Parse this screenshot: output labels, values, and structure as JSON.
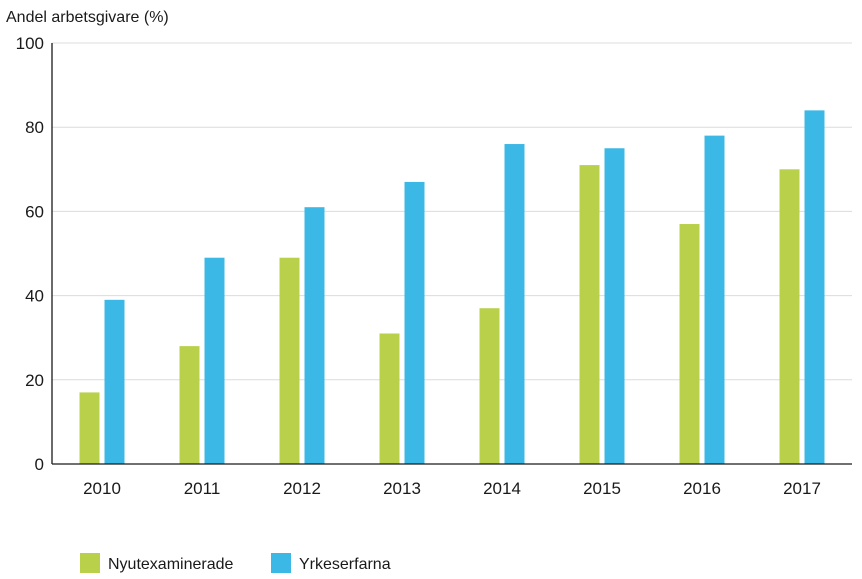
{
  "chart_data": {
    "type": "bar",
    "ylabel": "Andel arbetsgivare (%)",
    "categories": [
      "2010",
      "2011",
      "2012",
      "2013",
      "2014",
      "2015",
      "2016",
      "2017"
    ],
    "series": [
      {
        "name": "Nyutexaminerade",
        "color": "#b8d04a",
        "values": [
          17,
          28,
          49,
          31,
          37,
          71,
          57,
          70
        ]
      },
      {
        "name": "Yrkeserfarna",
        "color": "#3cb8e6",
        "values": [
          39,
          49,
          61,
          67,
          76,
          75,
          78,
          84
        ]
      }
    ],
    "ylim": [
      0,
      100
    ],
    "yticks": [
      "0",
      "20",
      "40",
      "60",
      "80",
      "100"
    ],
    "grid": true,
    "legend": "bottom-left"
  }
}
